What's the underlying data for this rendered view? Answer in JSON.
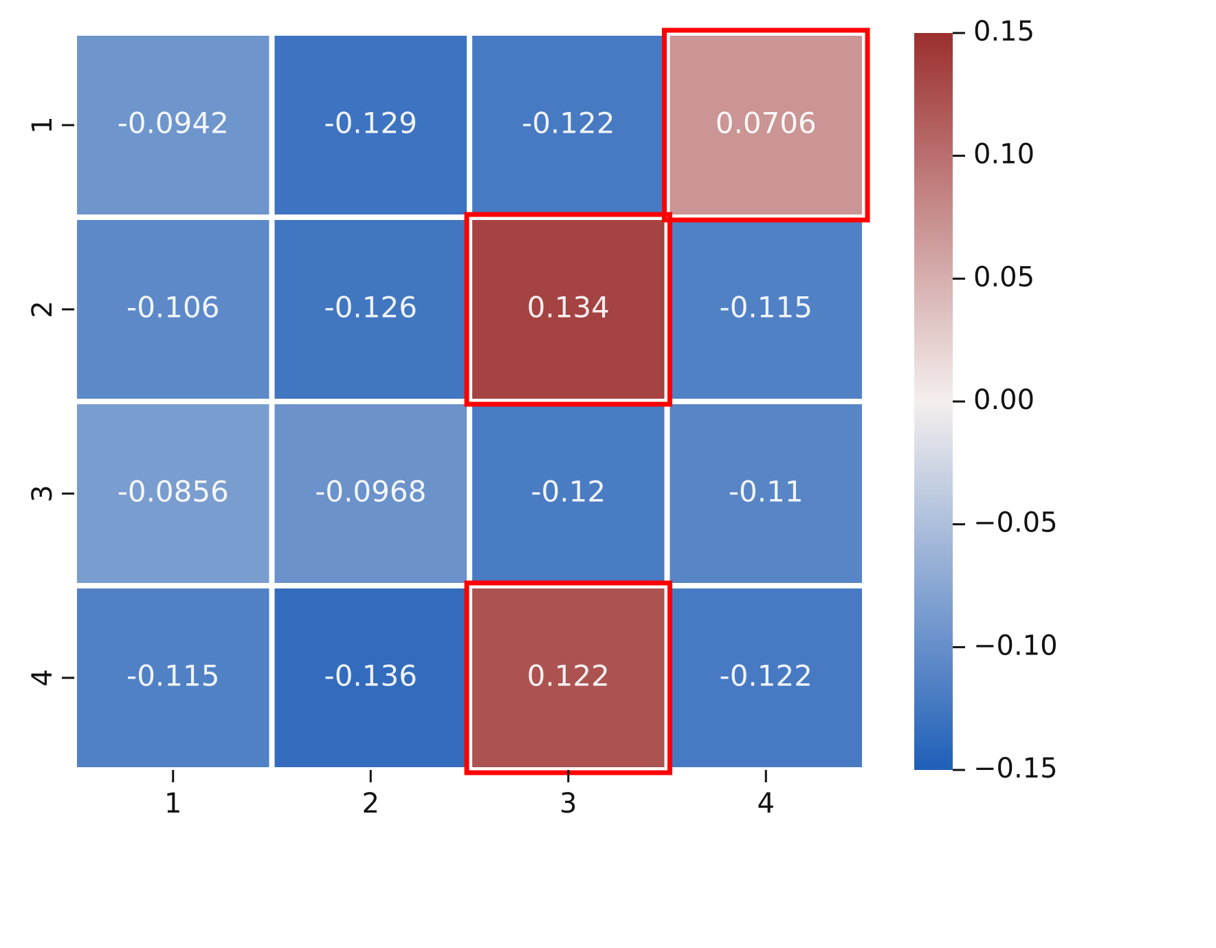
{
  "chart_data": {
    "type": "heatmap",
    "title": "",
    "xlabel": "",
    "ylabel": "",
    "x_categories": [
      "1",
      "2",
      "3",
      "4"
    ],
    "y_categories": [
      "1",
      "2",
      "3",
      "4"
    ],
    "values": [
      [
        -0.0942,
        -0.129,
        -0.122,
        0.0706
      ],
      [
        -0.106,
        -0.126,
        0.134,
        -0.115
      ],
      [
        -0.0856,
        -0.0968,
        -0.12,
        -0.11
      ],
      [
        -0.115,
        -0.136,
        0.122,
        -0.122
      ]
    ],
    "cell_labels": [
      [
        "-0.0942",
        "-0.129",
        "-0.122",
        "0.0706"
      ],
      [
        "-0.106",
        "-0.126",
        "0.134",
        "-0.115"
      ],
      [
        "-0.0856",
        "-0.0968",
        "-0.12",
        "-0.11"
      ],
      [
        "-0.115",
        "-0.136",
        "0.122",
        "-0.122"
      ]
    ],
    "highlighted_cells": [
      {
        "row": 0,
        "col": 3
      },
      {
        "row": 1,
        "col": 2
      },
      {
        "row": 3,
        "col": 2
      }
    ],
    "colorbar": {
      "vmin": -0.15,
      "vmax": 0.15,
      "ticks": [
        0.15,
        0.1,
        0.05,
        0.0,
        -0.05,
        -0.1,
        -0.15
      ],
      "tick_labels": [
        "0.15",
        "0.10",
        "0.05",
        "0.00",
        "−0.05",
        "−0.10",
        "−0.15"
      ],
      "colors": {
        "low": "#1f5fb8",
        "mid": "#f4efee",
        "high": "#9b2f2e"
      }
    },
    "grid_color": "#ffffff",
    "highlight_color": "#ff0000",
    "text_color": "#ffffff"
  }
}
